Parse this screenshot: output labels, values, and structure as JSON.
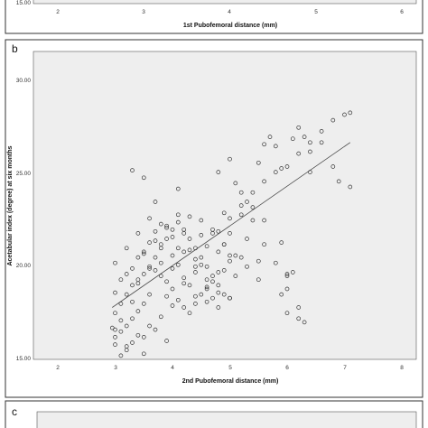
{
  "panels": {
    "a": {
      "xlabel": "1st Pubofemoral distance (mm)",
      "xticks": [
        "2",
        "3",
        "4",
        "5",
        "6"
      ],
      "yticks": [
        "15.00"
      ]
    },
    "b": {
      "letter": "b",
      "xticks": [
        "2",
        "3",
        "4",
        "5",
        "6",
        "7",
        "8"
      ],
      "yticks": [
        "15.00",
        "20.00",
        "25.00",
        "30.00"
      ]
    },
    "c": {
      "letter": "c"
    }
  },
  "colors": {
    "frame": "#333333",
    "plot_background": "#eeeeee",
    "marker_stroke": "#333333",
    "fit_line": "#444444"
  },
  "chart_data": {
    "type": "scatter",
    "xlabel": "2nd Pubofemoral distance (mm)",
    "ylabel": "Acetabular index (degree) at six months",
    "xlim": [
      1.5,
      8.3
    ],
    "ylim": [
      15,
      32
    ],
    "grid": false,
    "legend": "none",
    "marker": "open-circle",
    "fit_line": {
      "x": [
        2.95,
        7.1
      ],
      "y": [
        17.8,
        26.7
      ]
    },
    "x": [
      3.3,
      3.5,
      5.8,
      6.2,
      7.0,
      7.1,
      4.1,
      3.7,
      5.9,
      6.4,
      4.8,
      3.0,
      3.1,
      3.2,
      3.5,
      3.9,
      6.2,
      6.3,
      6.1,
      6.0,
      5.0,
      5.5,
      5.7,
      6.1,
      6.3,
      6.4,
      6.6,
      6.8,
      6.9,
      7.1,
      5.1,
      5.6,
      5.2,
      5.3,
      5.4,
      5.2,
      5.6,
      5.0,
      4.9,
      4.8,
      5.0,
      4.9,
      4.7,
      4.6,
      4.5,
      4.4,
      4.3,
      4.2,
      4.1,
      4.0,
      3.9,
      3.8,
      3.7,
      3.6,
      3.5,
      3.4,
      3.3,
      3.2,
      3.1,
      3.0,
      2.95,
      3.0,
      3.1,
      3.2,
      3.3,
      3.4,
      3.5,
      3.6,
      3.7,
      3.8,
      3.9,
      4.0,
      4.1,
      4.2,
      4.3,
      4.4,
      4.5,
      4.6,
      4.7,
      4.8,
      4.9,
      5.0,
      5.1,
      5.2,
      5.3,
      5.4,
      5.5,
      5.6,
      5.8,
      5.9,
      6.0,
      6.0,
      5.9,
      6.0,
      6.2,
      5.0,
      4.8,
      4.6,
      4.4,
      4.2,
      4.0,
      3.8,
      3.6,
      3.4,
      3.2,
      3.0,
      3.1,
      3.3,
      3.5,
      3.7,
      3.9,
      4.1,
      4.3,
      4.5,
      4.7,
      4.9,
      5.1,
      5.3,
      5.5,
      4.0,
      4.2,
      4.4,
      3.8,
      3.6,
      3.4,
      4.6,
      4.8,
      5.0,
      3.2,
      3.0,
      3.4,
      3.6,
      3.8,
      4.0,
      4.2,
      4.4,
      4.6,
      4.8,
      3.5,
      3.7,
      3.9,
      4.1,
      4.3,
      4.5,
      4.7,
      3.3,
      3.1,
      3.0,
      3.2,
      3.4,
      3.6,
      3.8,
      4.0,
      4.2,
      4.4,
      4.6,
      4.8,
      5.0,
      5.2,
      5.4,
      5.6,
      5.8,
      6.0,
      6.2,
      6.4,
      6.6,
      6.8,
      3.9,
      4.1,
      4.3,
      4.5,
      4.7,
      4.9,
      3.7,
      3.5,
      3.3
    ],
    "y": [
      25.2,
      24.8,
      26.5,
      27.5,
      28.2,
      28.3,
      24.2,
      23.5,
      25.3,
      25.1,
      25.1,
      16.6,
      15.2,
      15.5,
      15.3,
      16.0,
      17.2,
      17.0,
      19.7,
      19.5,
      25.8,
      25.6,
      27.0,
      26.9,
      27.0,
      26.2,
      26.7,
      25.4,
      24.6,
      24.3,
      24.5,
      26.6,
      24.0,
      23.5,
      23.2,
      22.8,
      22.5,
      21.8,
      21.2,
      20.8,
      20.3,
      19.8,
      19.2,
      18.8,
      18.5,
      18.0,
      17.5,
      17.8,
      18.2,
      18.8,
      19.2,
      19.5,
      19.8,
      18.5,
      18.0,
      17.6,
      17.2,
      16.8,
      16.5,
      16.2,
      16.7,
      17.5,
      18.0,
      18.5,
      19.0,
      19.3,
      19.6,
      20.0,
      20.5,
      21.0,
      21.5,
      22.0,
      22.4,
      22.0,
      21.5,
      21.0,
      20.5,
      20.0,
      19.5,
      19.0,
      18.5,
      18.3,
      19.5,
      20.5,
      21.5,
      22.5,
      20.3,
      21.2,
      20.2,
      21.3,
      19.6,
      18.8,
      18.5,
      17.5,
      17.8,
      18.3,
      18.6,
      19.3,
      20.0,
      20.8,
      21.6,
      22.3,
      22.6,
      21.8,
      21.0,
      20.2,
      19.3,
      19.9,
      20.7,
      21.4,
      22.2,
      22.8,
      22.7,
      22.5,
      22.0,
      21.2,
      20.6,
      20.0,
      19.3,
      20.6,
      21.8,
      19.7,
      20.2,
      21.3,
      20.5,
      18.9,
      19.7,
      20.6,
      19.6,
      18.6,
      19.1,
      19.9,
      21.2,
      19.9,
      19.1,
      18.4,
      18.1,
      17.8,
      20.8,
      21.9,
      18.4,
      20.1,
      20.9,
      21.7,
      18.3,
      18.1,
      17.1,
      15.8,
      15.7,
      16.3,
      16.8,
      17.3,
      17.9,
      19.4,
      20.4,
      21.1,
      21.9,
      22.6,
      23.3,
      24.0,
      24.6,
      25.1,
      25.4,
      26.1,
      26.7,
      27.3,
      27.9,
      22.1,
      21.0,
      19.0,
      20.1,
      21.8,
      22.9,
      16.6,
      16.2,
      15.9
    ]
  }
}
